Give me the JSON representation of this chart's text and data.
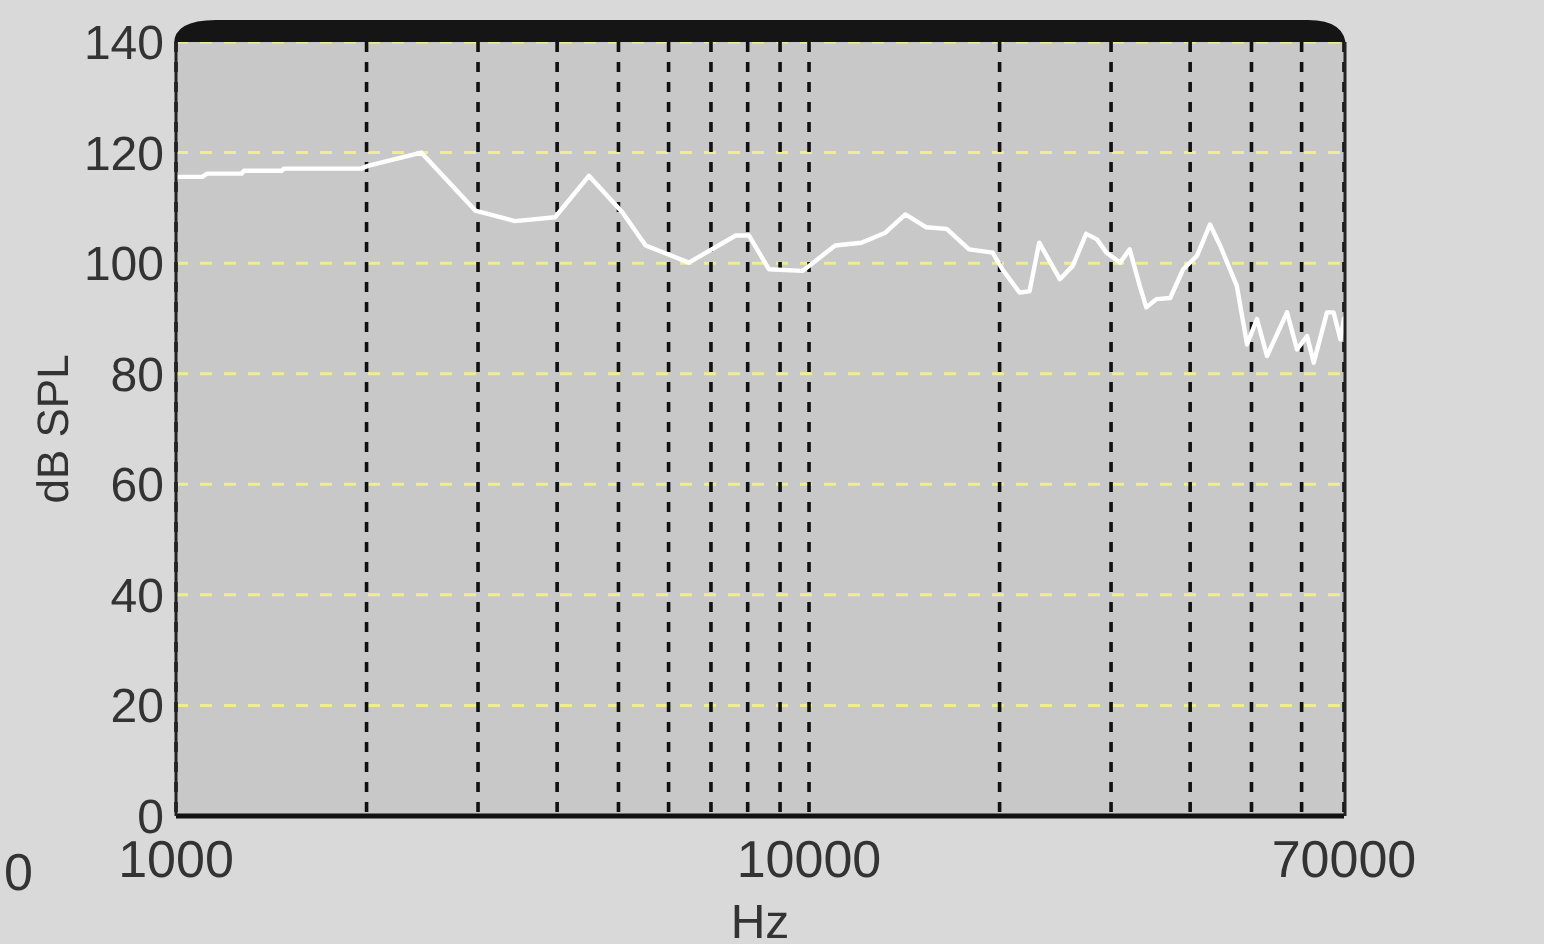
{
  "chart_data": {
    "type": "line",
    "xlabel": "Hz",
    "ylabel": "dB SPL",
    "x": [
      1000,
      1100,
      1120,
      1270,
      1280,
      1470,
      1480,
      1960,
      2010,
      2440,
      2970,
      3430,
      3970,
      4490,
      5070,
      5520,
      6460,
      7660,
      8040,
      8640,
      9760,
      10000,
      11000,
      12100,
      13200,
      14200,
      15300,
      16500,
      17900,
      19500,
      20200,
      21500,
      22300,
      23100,
      24900,
      26100,
      27400,
      28500,
      29500,
      31000,
      32100,
      33300,
      34100,
      35400,
      37200,
      39000,
      41000,
      43000,
      44600,
      47400,
      49200,
      51000,
      52900,
      56900,
      59000,
      61200,
      62700,
      65800,
      67400,
      69100,
      70000
    ],
    "series": [
      {
        "color": "#ffffff",
        "values": [
          115.6,
          115.6,
          116.2,
          116.2,
          116.7,
          116.7,
          117.1,
          117.1,
          117.6,
          120,
          109.5,
          107.6,
          108.3,
          115.8,
          109.2,
          103.2,
          100.1,
          105,
          105,
          98.9,
          98.6,
          99.5,
          103.2,
          103.7,
          105.5,
          108.8,
          106.5,
          106.2,
          102.5,
          101.9,
          98.9,
          94.7,
          94.9,
          103.7,
          97.1,
          99.5,
          105.3,
          104.3,
          101.9,
          100.1,
          102.5,
          95.9,
          92,
          93.5,
          93.7,
          98.9,
          101.3,
          107,
          103.2,
          95.9,
          85.3,
          89.9,
          83.2,
          91.1,
          84.4,
          86.8,
          82,
          91.1,
          91.1,
          86.2,
          90
        ]
      }
    ],
    "log": "x",
    "xlim": [
      1000,
      70000
    ],
    "ylim": [
      0,
      140
    ],
    "xticks": [
      1000,
      {
        "value": 2000,
        "label": null
      },
      {
        "value": 3000,
        "label": null
      },
      {
        "value": 4000,
        "label": null
      },
      {
        "value": 5000,
        "label": null
      },
      {
        "value": 6000,
        "label": null
      },
      {
        "value": 7000,
        "label": null
      },
      {
        "value": 8000,
        "label": null
      },
      {
        "value": 9000,
        "label": null
      },
      10000,
      {
        "value": 20000,
        "label": null
      },
      {
        "value": 30000,
        "label": null
      },
      {
        "value": 40000,
        "label": null
      },
      {
        "value": 50000,
        "label": null
      },
      {
        "value": 60000,
        "label": null
      },
      70000
    ],
    "yticks": [
      0,
      20,
      40,
      60,
      80,
      100,
      120,
      140
    ],
    "grid": true,
    "marker": "none",
    "line_style": "solid",
    "annotations": [
      "0"
    ]
  }
}
